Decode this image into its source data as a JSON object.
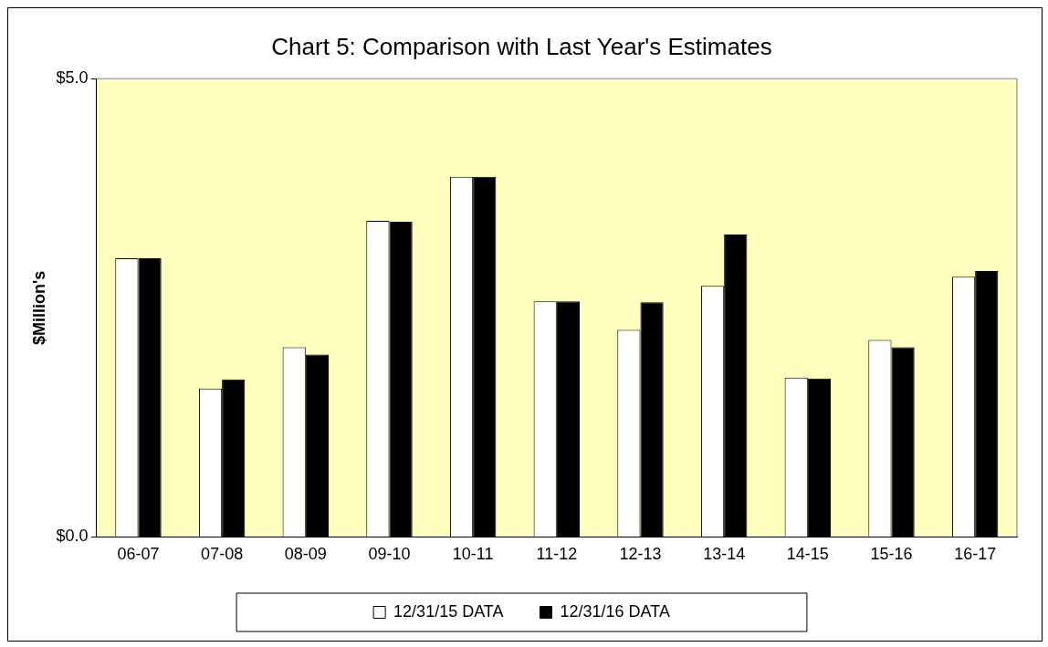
{
  "chart_data": {
    "type": "bar",
    "title": "Chart 5: Comparison with Last Year's Estimates",
    "ylabel": "$Million's",
    "categories": [
      "06-07",
      "07-08",
      "08-09",
      "09-10",
      "10-11",
      "11-12",
      "12-13",
      "13-14",
      "14-15",
      "15-16",
      "16-17"
    ],
    "series": [
      {
        "name": "12/31/15 DATA",
        "color": "#ffffff",
        "values": [
          3.04,
          1.62,
          2.07,
          3.45,
          3.93,
          2.57,
          2.26,
          2.74,
          1.74,
          2.15,
          2.84
        ]
      },
      {
        "name": "12/31/16 DATA",
        "color": "#000000",
        "values": [
          3.04,
          1.72,
          1.99,
          3.44,
          3.93,
          2.57,
          2.56,
          3.3,
          1.73,
          2.07,
          2.9
        ]
      }
    ],
    "ylim": [
      0,
      5
    ],
    "yticks": [
      {
        "value": 0,
        "label": "$0.0"
      },
      {
        "value": 5,
        "label": "$5.0"
      }
    ],
    "grid": false,
    "legend": "bottom"
  }
}
